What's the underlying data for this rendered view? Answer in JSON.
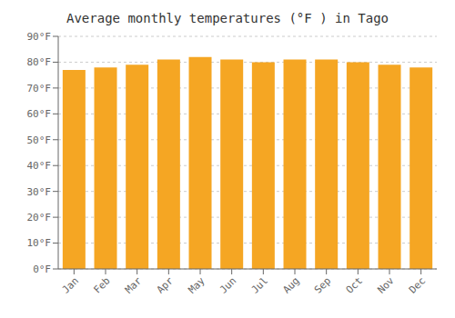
{
  "chart_data": {
    "type": "bar",
    "title": "Average monthly temperatures (°F ) in Tago",
    "categories": [
      "Jan",
      "Feb",
      "Mar",
      "Apr",
      "May",
      "Jun",
      "Jul",
      "Aug",
      "Sep",
      "Oct",
      "Nov",
      "Dec"
    ],
    "values": [
      77,
      78,
      79,
      81,
      82,
      81,
      80,
      81,
      81,
      80,
      79,
      78
    ],
    "color": "#F5A623",
    "ylim": [
      0,
      90
    ],
    "yticks": [
      {
        "value": 0,
        "label": "0°F"
      },
      {
        "value": 10,
        "label": "10°F"
      },
      {
        "value": 20,
        "label": "20°F"
      },
      {
        "value": 30,
        "label": "30°F"
      },
      {
        "value": 40,
        "label": "40°F"
      },
      {
        "value": 50,
        "label": "50°F"
      },
      {
        "value": 60,
        "label": "60°F"
      },
      {
        "value": 70,
        "label": "70°F"
      },
      {
        "value": 80,
        "label": "80°F"
      },
      {
        "value": 90,
        "label": "90°F"
      }
    ],
    "grid": true
  }
}
